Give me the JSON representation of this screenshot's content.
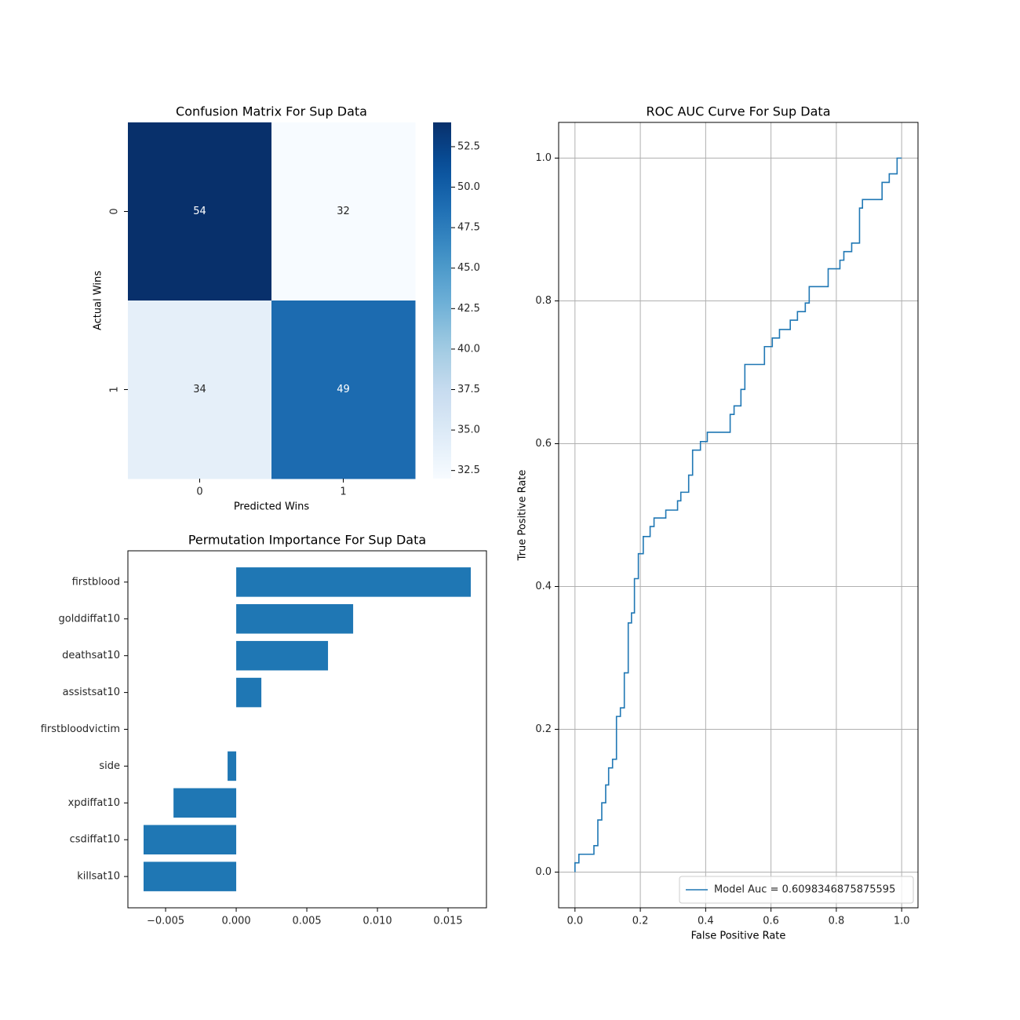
{
  "chart_data": [
    {
      "type": "heatmap",
      "title": "Confusion Matrix For Sup Data",
      "xlabel": "Predicted Wins",
      "ylabel": "Actual Wins",
      "xcategories": [
        "0",
        "1"
      ],
      "ycategories": [
        "0",
        "1"
      ],
      "values": [
        [
          54,
          32
        ],
        [
          34,
          49
        ]
      ],
      "colormap": "Blues",
      "clim": [
        32,
        54
      ],
      "cticks": [
        32.5,
        {
          "value": 35,
          "label": "35.0"
        },
        37.5,
        {
          "value": 40,
          "label": "40.0"
        },
        42.5,
        {
          "value": 45,
          "label": "45.0"
        },
        47.5,
        {
          "value": 50,
          "label": "50.0"
        },
        52.5
      ]
    },
    {
      "type": "barh",
      "title": "Permutation Importance For Sup Data",
      "categories": [
        "firstblood",
        "golddiffat10",
        "deathsat10",
        "assistsat10",
        "firstbloodvictim",
        "side",
        "xpdiffat10",
        "csdiffat10",
        "killsat10"
      ],
      "values": [
        0.01661,
        0.00828,
        0.0065,
        0.00178,
        0,
        -0.00061,
        -0.00444,
        -0.00656,
        -0.00656
      ],
      "color": "#1f77b4",
      "xlim": [
        -0.00767,
        0.01772
      ],
      "xticks": [
        {
          "value": -0.005,
          "label": "−0.005"
        },
        {
          "value": 0,
          "label": "0.000"
        },
        0.005,
        {
          "value": 0.01,
          "label": "0.010"
        },
        0.015
      ]
    },
    {
      "type": "line",
      "title": "ROC AUC Curve For Sup Data",
      "xlabel": "False Positive Rate",
      "ylabel": "True Positive Rate",
      "series": [
        {
          "name": "Model Auc = 0.6098346875875595",
          "color": "#1f77b4",
          "x": [
            0,
            0,
            0.012,
            0.012,
            0.058,
            0.058,
            0.07,
            0.07,
            0.082,
            0.082,
            0.094,
            0.094,
            0.103,
            0.103,
            0.115,
            0.115,
            0.127,
            0.127,
            0.139,
            0.139,
            0.151,
            0.151,
            0.163,
            0.163,
            0.173,
            0.173,
            0.182,
            0.182,
            0.194,
            0.194,
            0.209,
            0.209,
            0.23,
            0.23,
            0.242,
            0.242,
            0.278,
            0.278,
            0.314,
            0.314,
            0.324,
            0.324,
            0.348,
            0.348,
            0.36,
            0.36,
            0.384,
            0.384,
            0.405,
            0.405,
            0.475,
            0.475,
            0.487,
            0.487,
            0.508,
            0.508,
            0.52,
            0.52,
            0.58,
            0.58,
            0.604,
            0.604,
            0.626,
            0.626,
            0.659,
            0.659,
            0.681,
            0.681,
            0.705,
            0.705,
            0.717,
            0.717,
            0.775,
            0.775,
            0.811,
            0.811,
            0.823,
            0.823,
            0.847,
            0.847,
            0.871,
            0.871,
            0.88,
            0.88,
            0.94,
            0.94,
            0.962,
            0.962,
            0.986,
            0.986,
            1.0
          ],
          "y": [
            0,
            0.013,
            0.013,
            0.025,
            0.025,
            0.037,
            0.037,
            0.073,
            0.073,
            0.097,
            0.097,
            0.122,
            0.122,
            0.146,
            0.146,
            0.158,
            0.158,
            0.218,
            0.218,
            0.23,
            0.23,
            0.279,
            0.279,
            0.349,
            0.349,
            0.363,
            0.363,
            0.411,
            0.411,
            0.446,
            0.446,
            0.47,
            0.47,
            0.484,
            0.484,
            0.496,
            0.496,
            0.507,
            0.507,
            0.52,
            0.52,
            0.532,
            0.532,
            0.556,
            0.556,
            0.591,
            0.591,
            0.603,
            0.603,
            0.616,
            0.616,
            0.641,
            0.641,
            0.653,
            0.653,
            0.676,
            0.676,
            0.711,
            0.711,
            0.736,
            0.736,
            0.748,
            0.748,
            0.76,
            0.76,
            0.773,
            0.773,
            0.785,
            0.785,
            0.797,
            0.797,
            0.82,
            0.82,
            0.845,
            0.845,
            0.857,
            0.857,
            0.869,
            0.869,
            0.881,
            0.881,
            0.93,
            0.93,
            0.942,
            0.942,
            0.966,
            0.966,
            0.978,
            0.978,
            1.0,
            1.0
          ]
        }
      ],
      "xlim": [
        -0.05,
        1.05
      ],
      "ylim": [
        -0.05,
        1.05
      ],
      "xticks": [
        {
          "value": 0,
          "label": "0.0"
        },
        0.2,
        0.4,
        0.6,
        0.8,
        {
          "value": 1,
          "label": "1.0"
        }
      ],
      "yticks": [
        {
          "value": 0,
          "label": "0.0"
        },
        0.2,
        0.4,
        0.6,
        0.8,
        {
          "value": 1,
          "label": "1.0"
        }
      ],
      "grid": true,
      "legend": "lower right"
    }
  ]
}
